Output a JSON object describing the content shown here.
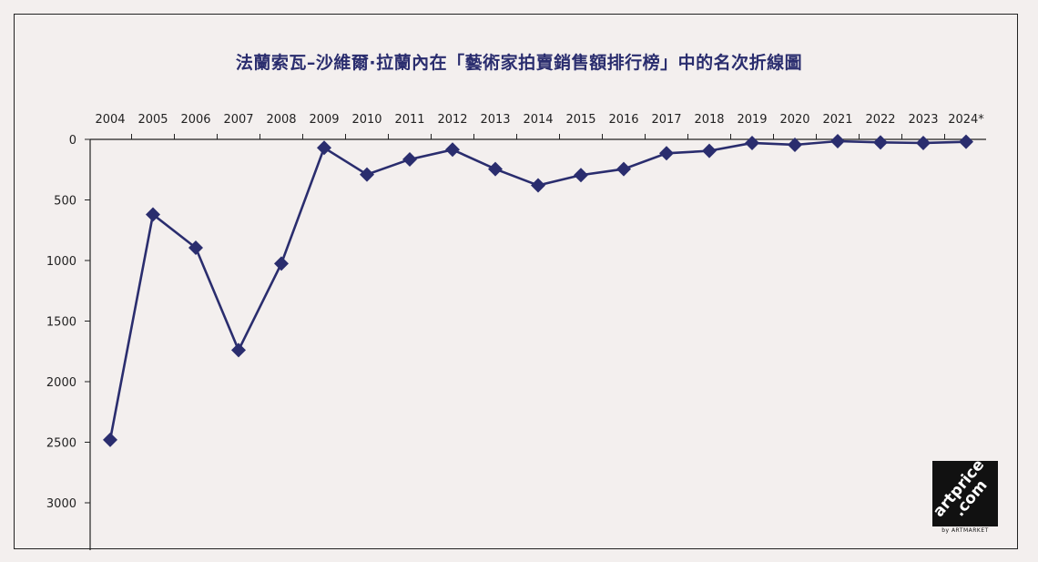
{
  "chart_data": {
    "type": "line",
    "title": "法蘭索瓦–沙維爾·拉蘭內在「藝術家拍賣銷售額排行榜」中的名次折線圖",
    "categories": [
      "2004",
      "2005",
      "2006",
      "2007",
      "2008",
      "2009",
      "2010",
      "2011",
      "2012",
      "2013",
      "2014",
      "2015",
      "2016",
      "2017",
      "2018",
      "2019",
      "2020",
      "2021",
      "2022",
      "2023",
      "2024*"
    ],
    "series": [
      {
        "values": [
          2480,
          620,
          895,
          1740,
          1025,
          70,
          290,
          165,
          85,
          245,
          380,
          295,
          245,
          115,
          95,
          30,
          45,
          15,
          25,
          30,
          20
        ]
      }
    ],
    "y_ticks": [
      0,
      500,
      1000,
      1500,
      2000,
      2500,
      3000
    ],
    "ylim": [
      0,
      3380
    ],
    "y_inverted": true,
    "x_axis_position": "top",
    "grid": false,
    "colors": {
      "line": "#2a2d6e",
      "marker": "#2a2d6e",
      "title": "#2a2d6e"
    }
  },
  "logo": {
    "line1": "artprice",
    "line2": ".com",
    "sub": "by ARTMARKET"
  }
}
